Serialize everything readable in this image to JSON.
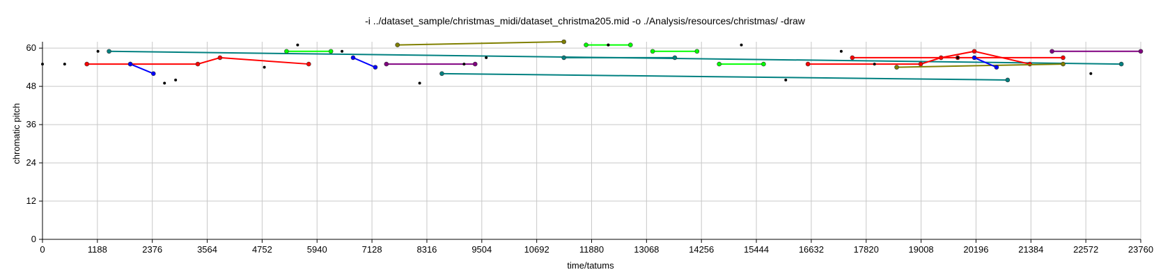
{
  "chart_data": {
    "type": "scatter",
    "title": "-i ../dataset_sample/christmas_midi/dataset_christma205.mid -o ./Analysis/resources/christmas/ -draw",
    "xlabel": "time/tatums",
    "ylabel": "chromatic pitch",
    "xlim": [
      0,
      23760
    ],
    "ylim": [
      0,
      62
    ],
    "xticks": [
      0,
      1188,
      2376,
      3564,
      4752,
      5940,
      7128,
      8316,
      9504,
      10692,
      11880,
      13068,
      14256,
      15444,
      16632,
      17820,
      19008,
      20196,
      21384,
      22572,
      23760
    ],
    "yticks": [
      0,
      12,
      24,
      36,
      48,
      60
    ],
    "grid": true,
    "segments": [
      {
        "color": "#ff0000",
        "points": [
          [
            960,
            55
          ],
          [
            1900,
            55
          ],
          [
            3360,
            55
          ],
          [
            3840,
            57
          ],
          [
            5760,
            55
          ]
        ]
      },
      {
        "color": "#0000ff",
        "points": [
          [
            1900,
            55
          ],
          [
            2400,
            52
          ]
        ]
      },
      {
        "color": "#008080",
        "points": [
          [
            1440,
            59
          ],
          [
            23340,
            55
          ]
        ]
      },
      {
        "color": "#00ff00",
        "points": [
          [
            5280,
            59
          ],
          [
            6240,
            59
          ]
        ]
      },
      {
        "color": "#0000ff",
        "points": [
          [
            6720,
            57
          ],
          [
            7200,
            54
          ]
        ]
      },
      {
        "color": "#800080",
        "points": [
          [
            7440,
            55
          ],
          [
            9360,
            55
          ]
        ]
      },
      {
        "color": "#808000",
        "points": [
          [
            7680,
            61
          ],
          [
            11280,
            62
          ]
        ]
      },
      {
        "color": "#008080",
        "points": [
          [
            8640,
            52
          ],
          [
            20880,
            50
          ]
        ]
      },
      {
        "color": "#008080",
        "points": [
          [
            11280,
            57
          ],
          [
            13680,
            57
          ]
        ]
      },
      {
        "color": "#00ff00",
        "points": [
          [
            11760,
            61
          ],
          [
            12720,
            61
          ]
        ]
      },
      {
        "color": "#00ff00",
        "points": [
          [
            13200,
            59
          ],
          [
            14160,
            59
          ]
        ]
      },
      {
        "color": "#00ff00",
        "points": [
          [
            14640,
            55
          ],
          [
            15600,
            55
          ]
        ]
      },
      {
        "color": "#ff0000",
        "points": [
          [
            16560,
            55
          ],
          [
            19000,
            55
          ],
          [
            19440,
            57
          ],
          [
            20160,
            59
          ],
          [
            21360,
            55
          ]
        ]
      },
      {
        "color": "#ff0000",
        "points": [
          [
            17520,
            57
          ],
          [
            19800,
            57
          ],
          [
            22080,
            57
          ]
        ]
      },
      {
        "color": "#808000",
        "points": [
          [
            18480,
            54
          ],
          [
            22080,
            55
          ]
        ]
      },
      {
        "color": "#0000ff",
        "points": [
          [
            20160,
            57
          ],
          [
            20640,
            54
          ]
        ]
      },
      {
        "color": "#800080",
        "points": [
          [
            21840,
            59
          ],
          [
            23760,
            59
          ]
        ]
      }
    ],
    "isolated_notes": [
      [
        0,
        55
      ],
      [
        480,
        55
      ],
      [
        1200,
        59
      ],
      [
        2640,
        49
      ],
      [
        2880,
        50
      ],
      [
        4800,
        54
      ],
      [
        5520,
        61
      ],
      [
        6480,
        59
      ],
      [
        8160,
        49
      ],
      [
        9600,
        57
      ],
      [
        12240,
        61
      ],
      [
        15120,
        61
      ],
      [
        16080,
        50
      ],
      [
        17280,
        59
      ],
      [
        18000,
        55
      ],
      [
        22680,
        52
      ],
      [
        12240,
        61
      ],
      [
        9120,
        55
      ],
      [
        19800,
        57
      ]
    ]
  }
}
